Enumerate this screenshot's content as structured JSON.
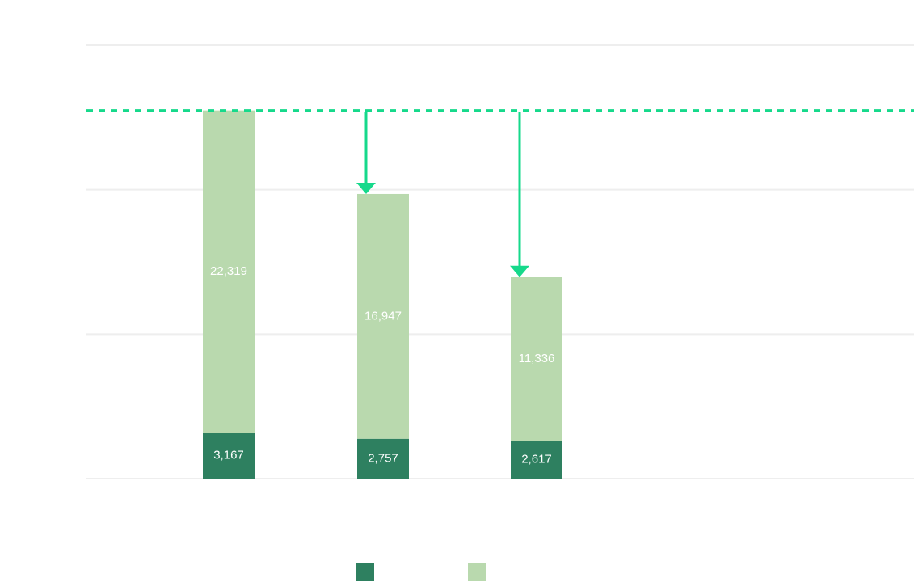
{
  "chart_data": {
    "type": "bar",
    "stacked": true,
    "categories": [
      "",
      "",
      ""
    ],
    "series": [
      {
        "name": "",
        "color": "#2e8060",
        "values": [
          3167,
          2757,
          2617
        ]
      },
      {
        "name": "",
        "color": "#b9d9ae",
        "values": [
          22319,
          16947,
          11336
        ]
      }
    ],
    "labels": [
      [
        "3,167",
        "2,757",
        "2,617"
      ],
      [
        "22,319",
        "16,947",
        "11,336"
      ]
    ],
    "reference_line": {
      "value": 25486,
      "style": "dashed",
      "color": "#16d98b"
    },
    "reduction_arrows": [
      {
        "category_index": 1,
        "from": 25486,
        "to": 19704
      },
      {
        "category_index": 2,
        "from": 25486,
        "to": 13953
      }
    ],
    "ylim": [
      0,
      30000
    ],
    "gridlines": [
      0,
      10000,
      20000,
      30000
    ],
    "title": "",
    "xlabel": "",
    "ylabel": "",
    "legend": {
      "position": "bottom"
    }
  }
}
